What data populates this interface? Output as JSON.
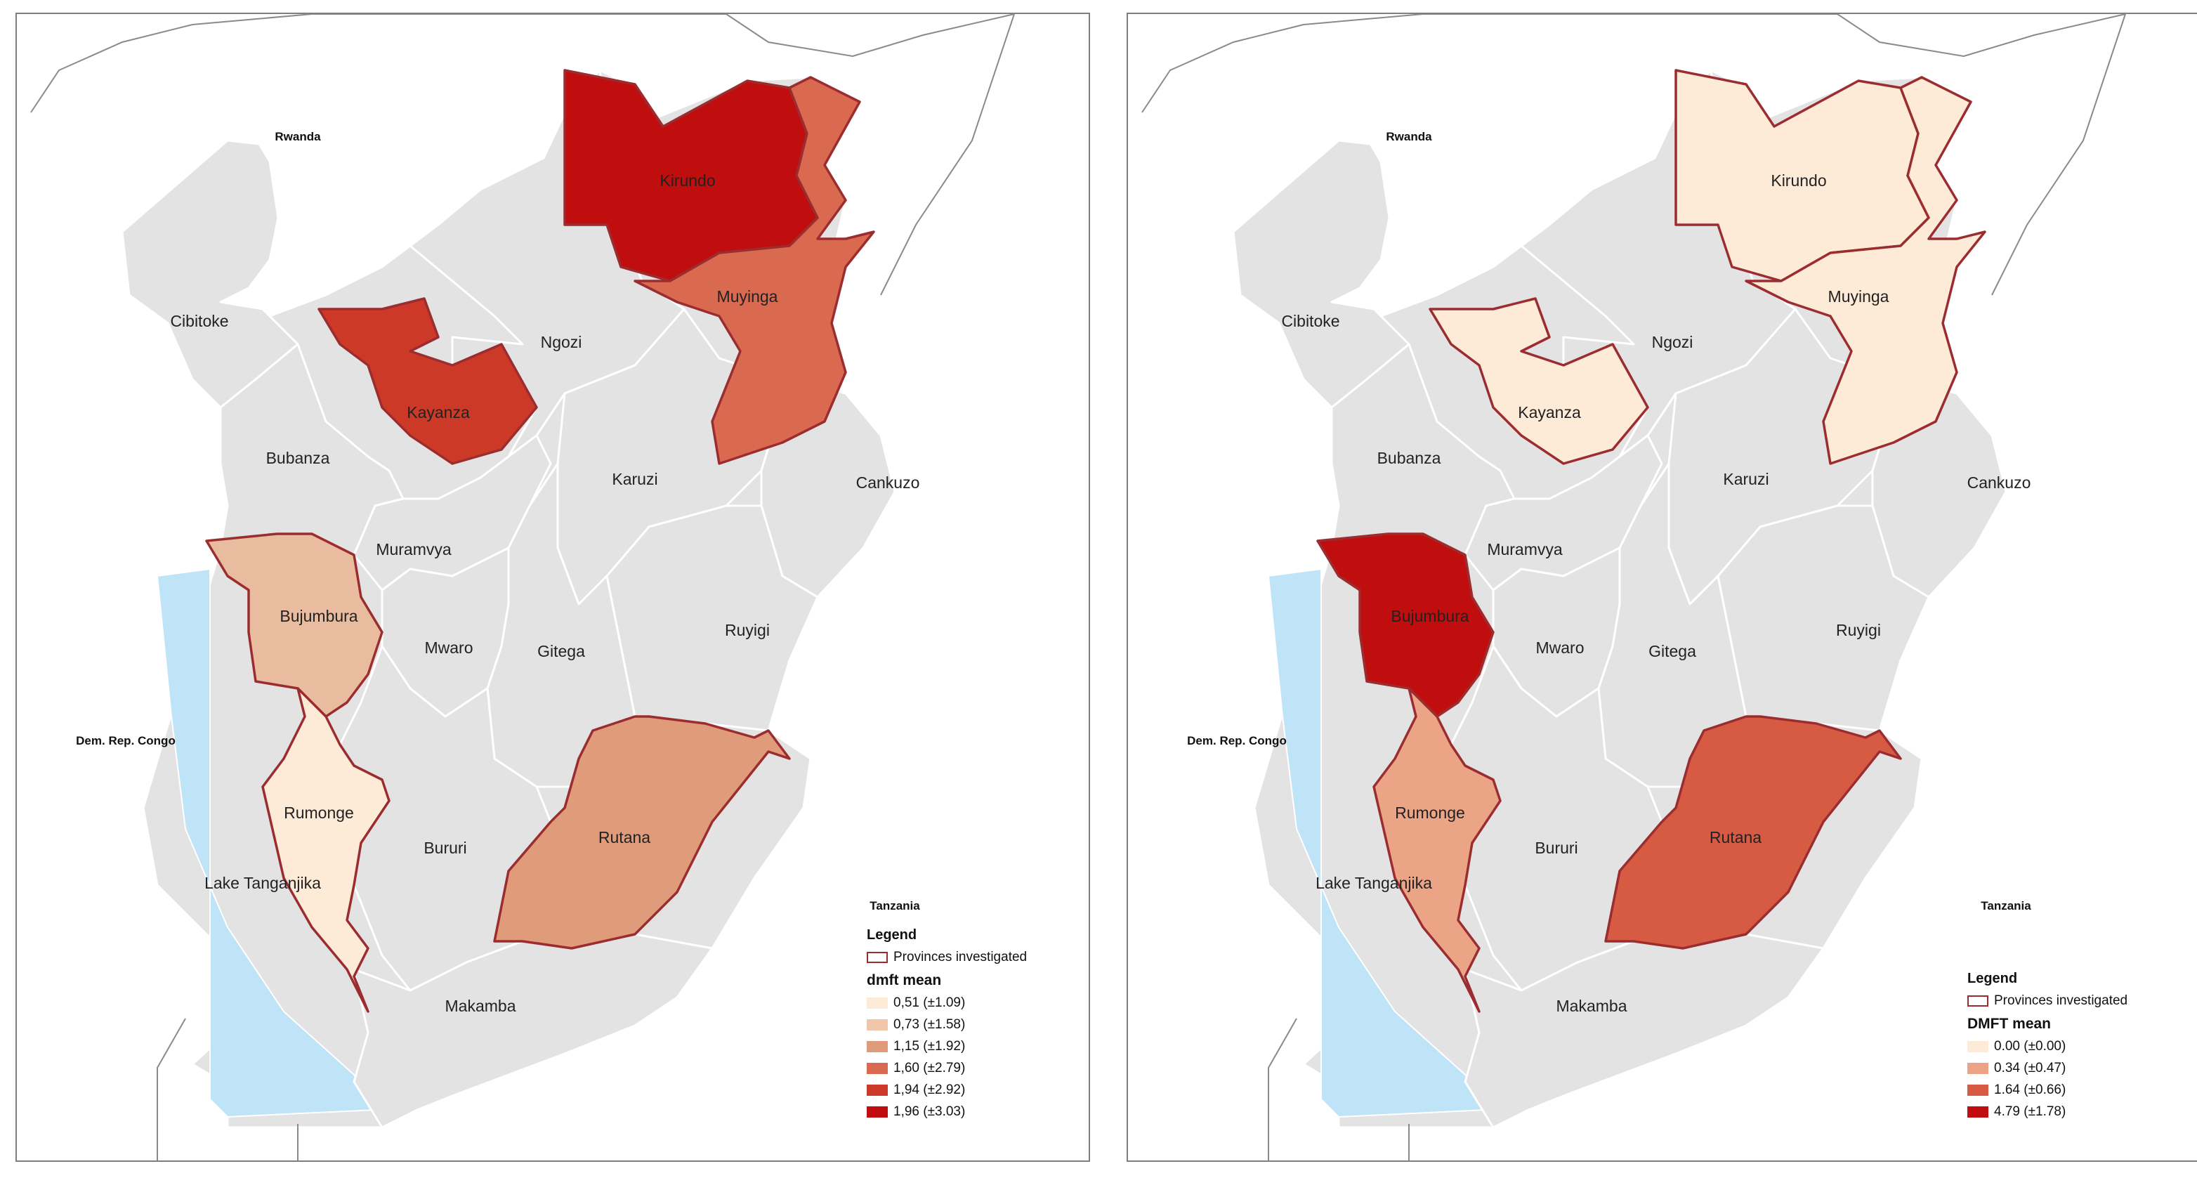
{
  "maps": [
    {
      "countries": [
        "Rwanda",
        "Dem. Rep. Congo",
        "Tanzania"
      ],
      "lake": "Lake Tanganjika",
      "provinces": {
        "cibitoke": {
          "name": "Cibitoke",
          "fill": "#e3e3e3",
          "investigated": false
        },
        "bubanza": {
          "name": "Bubanza",
          "fill": "#e3e3e3",
          "investigated": false
        },
        "ngozi": {
          "name": "Ngozi",
          "fill": "#e3e3e3",
          "investigated": false
        },
        "karuzi": {
          "name": "Karuzi",
          "fill": "#e3e3e3",
          "investigated": false
        },
        "cankuzo": {
          "name": "Cankuzo",
          "fill": "#e3e3e3",
          "investigated": false
        },
        "muramvya": {
          "name": "Muramvya",
          "fill": "#e3e3e3",
          "investigated": false
        },
        "mwaro": {
          "name": "Mwaro",
          "fill": "#e3e3e3",
          "investigated": false
        },
        "gitega": {
          "name": "Gitega",
          "fill": "#e3e3e3",
          "investigated": false
        },
        "ruyigi": {
          "name": "Ruyigi",
          "fill": "#e3e3e3",
          "investigated": false
        },
        "bururi": {
          "name": "Bururi",
          "fill": "#e3e3e3",
          "investigated": false
        },
        "makamba": {
          "name": "Makamba",
          "fill": "#e3e3e3",
          "investigated": false
        },
        "kirundo": {
          "name": "Kirundo",
          "fill": "#c00d0d",
          "investigated": true
        },
        "muyinga": {
          "name": "Muyinga",
          "fill": "#d9694f",
          "investigated": true
        },
        "kayanza": {
          "name": "Kayanza",
          "fill": "#cc3a27",
          "investigated": true
        },
        "bujumbura": {
          "name": "Bujumbura",
          "fill": "#e9bc9f",
          "investigated": true
        },
        "rumonge": {
          "name": "Rumonge",
          "fill": "#fdebd8",
          "investigated": true
        },
        "rutana": {
          "name": "Rutana",
          "fill": "#e09b7a",
          "investigated": true
        }
      },
      "legend": {
        "title": "Legend",
        "outline_label": "Provinces investigated",
        "measure_title": "dmft mean",
        "classes": [
          {
            "label": "0,51 (±1.09)",
            "color": "#fdebd8"
          },
          {
            "label": "0,73 (±1.58)",
            "color": "#efc6aa"
          },
          {
            "label": "1,15 (±1.92)",
            "color": "#e09b7a"
          },
          {
            "label": "1,60 (±2.79)",
            "color": "#d9694f"
          },
          {
            "label": "1,94 (±2.92)",
            "color": "#cc3a27"
          },
          {
            "label": "1,96 (±3.03)",
            "color": "#c00d0d"
          }
        ]
      }
    },
    {
      "countries": [
        "Rwanda",
        "Dem. Rep. Congo",
        "Tanzania"
      ],
      "lake": "Lake Tanganjika",
      "provinces": {
        "cibitoke": {
          "name": "Cibitoke",
          "fill": "#e3e3e3",
          "investigated": false
        },
        "bubanza": {
          "name": "Bubanza",
          "fill": "#e3e3e3",
          "investigated": false
        },
        "ngozi": {
          "name": "Ngozi",
          "fill": "#e3e3e3",
          "investigated": false
        },
        "karuzi": {
          "name": "Karuzi",
          "fill": "#e3e3e3",
          "investigated": false
        },
        "cankuzo": {
          "name": "Cankuzo",
          "fill": "#e3e3e3",
          "investigated": false
        },
        "muramvya": {
          "name": "Muramvya",
          "fill": "#e3e3e3",
          "investigated": false
        },
        "mwaro": {
          "name": "Mwaro",
          "fill": "#e3e3e3",
          "investigated": false
        },
        "gitega": {
          "name": "Gitega",
          "fill": "#e3e3e3",
          "investigated": false
        },
        "ruyigi": {
          "name": "Ruyigi",
          "fill": "#e3e3e3",
          "investigated": false
        },
        "bururi": {
          "name": "Bururi",
          "fill": "#e3e3e3",
          "investigated": false
        },
        "makamba": {
          "name": "Makamba",
          "fill": "#e3e3e3",
          "investigated": false
        },
        "kirundo": {
          "name": "Kirundo",
          "fill": "#fdebd8",
          "investigated": true
        },
        "muyinga": {
          "name": "Muyinga",
          "fill": "#fdebd8",
          "investigated": true
        },
        "kayanza": {
          "name": "Kayanza",
          "fill": "#fdebd8",
          "investigated": true
        },
        "bujumbura": {
          "name": "Bujumbura",
          "fill": "#c00d0d",
          "investigated": true
        },
        "rumonge": {
          "name": "Rumonge",
          "fill": "#eba486",
          "investigated": true
        },
        "rutana": {
          "name": "Rutana",
          "fill": "#d65b42",
          "investigated": true
        }
      },
      "legend": {
        "title": "Legend",
        "outline_label": "Provinces investigated",
        "measure_title": "DMFT mean",
        "classes": [
          {
            "label": "0.00  (±0.00)",
            "color": "#fdebd8"
          },
          {
            "label": "0.34  (±0.47)",
            "color": "#eba486"
          },
          {
            "label": "1.64  (±0.66)",
            "color": "#d65b42"
          },
          {
            "label": "4.79  (±1.78)",
            "color": "#c00d0d"
          }
        ]
      }
    }
  ]
}
